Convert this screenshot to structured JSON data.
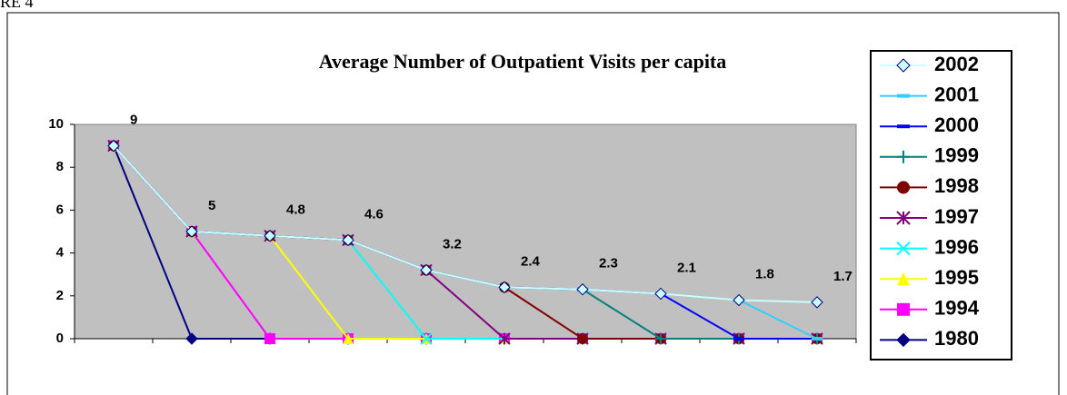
{
  "figure_label": "RE 4",
  "chart_data": {
    "type": "line",
    "title": "Average Number of Outpatient Visits per capita",
    "categories": [
      null,
      null,
      null,
      null,
      null,
      null,
      null,
      null,
      null,
      null
    ],
    "ylim": [
      0,
      10
    ],
    "yticks": [
      0,
      2,
      4,
      6,
      8,
      10
    ],
    "plot_background": "#c0c0c0",
    "legend": "right",
    "series": [
      {
        "name": "2002",
        "color": "#ccffff",
        "marker": "diamond",
        "data_labels": true,
        "values": [
          9,
          5,
          4.8,
          4.6,
          3.2,
          2.4,
          2.3,
          2.1,
          1.8,
          1.7
        ]
      },
      {
        "name": "2001",
        "color": "#33ccff",
        "marker": "dash",
        "values": [
          9,
          5,
          4.8,
          4.6,
          3.2,
          2.4,
          2.3,
          2.1,
          1.8,
          0
        ]
      },
      {
        "name": "2000",
        "color": "#0000ff",
        "marker": "dash",
        "values": [
          9,
          5,
          4.8,
          4.6,
          3.2,
          2.4,
          2.3,
          2.1,
          0,
          0
        ]
      },
      {
        "name": "1999",
        "color": "#008080",
        "marker": "plus",
        "values": [
          9,
          5,
          4.8,
          4.6,
          3.2,
          2.4,
          2.3,
          0,
          0,
          0
        ]
      },
      {
        "name": "1998",
        "color": "#800000",
        "marker": "circle",
        "values": [
          9,
          5,
          4.8,
          4.6,
          3.2,
          2.4,
          0,
          0,
          0,
          0
        ]
      },
      {
        "name": "1997",
        "color": "#800080",
        "marker": "star",
        "values": [
          9,
          5,
          4.8,
          4.6,
          3.2,
          0,
          0,
          0,
          0,
          0
        ]
      },
      {
        "name": "1996",
        "color": "#00ffff",
        "marker": "x",
        "values": [
          9,
          5,
          4.8,
          4.6,
          0,
          0,
          0,
          0,
          0,
          0
        ]
      },
      {
        "name": "1995",
        "color": "#ffff00",
        "marker": "triangle",
        "values": [
          9,
          5,
          4.8,
          0,
          0,
          0,
          0,
          0,
          0,
          0
        ]
      },
      {
        "name": "1994",
        "color": "#ff00ff",
        "marker": "square",
        "values": [
          9,
          5,
          0,
          0,
          0,
          0,
          0,
          0,
          0,
          0
        ]
      },
      {
        "name": "1980",
        "color": "#000080",
        "marker": "diamond",
        "values": [
          9,
          0,
          0,
          0,
          0,
          0,
          0,
          0,
          0,
          0
        ]
      }
    ]
  }
}
